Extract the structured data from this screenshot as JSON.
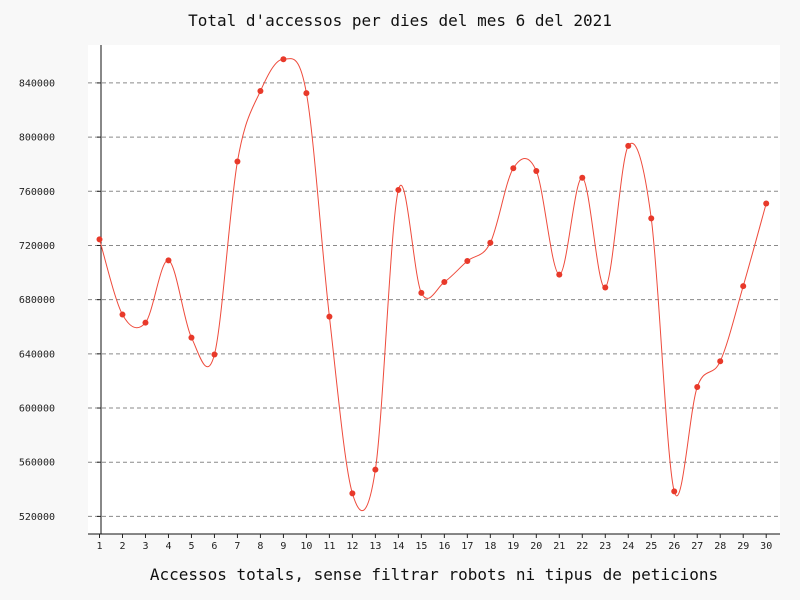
{
  "chart_data": {
    "type": "line",
    "title": "Total d'accessos per dies del mes 6 del 2021",
    "xlabel": "Accessos totals, sense filtrar robots ni tipus de peticions",
    "ylabel": "",
    "x": [
      1,
      2,
      3,
      4,
      5,
      6,
      7,
      8,
      9,
      10,
      11,
      12,
      13,
      14,
      15,
      16,
      17,
      18,
      19,
      20,
      21,
      22,
      23,
      24,
      25,
      26,
      27,
      28,
      29,
      30
    ],
    "series": [
      {
        "values": [
          724500,
          669000,
          663000,
          709000,
          652000,
          639500,
          782000,
          834000,
          857500,
          832500,
          667500,
          537000,
          554500,
          761000,
          685000,
          693000,
          708500,
          722000,
          777000,
          775000,
          698500,
          770000,
          689000,
          793500,
          740000,
          538500,
          615500,
          634500,
          690000,
          751000
        ]
      }
    ],
    "ylim": [
      507000,
      868000
    ],
    "xlim": [
      0.5,
      30.6
    ],
    "yticks": [
      "520000",
      "560000",
      "600000",
      "640000",
      "680000",
      "720000",
      "760000",
      "800000",
      "840000"
    ],
    "grid": "horizontal dashed",
    "colors": {
      "line": "#ee4b3c",
      "point": "#e8392a",
      "grid": "#8a8a8a",
      "background": "#ffffff",
      "page": "#f8f8f8"
    }
  }
}
